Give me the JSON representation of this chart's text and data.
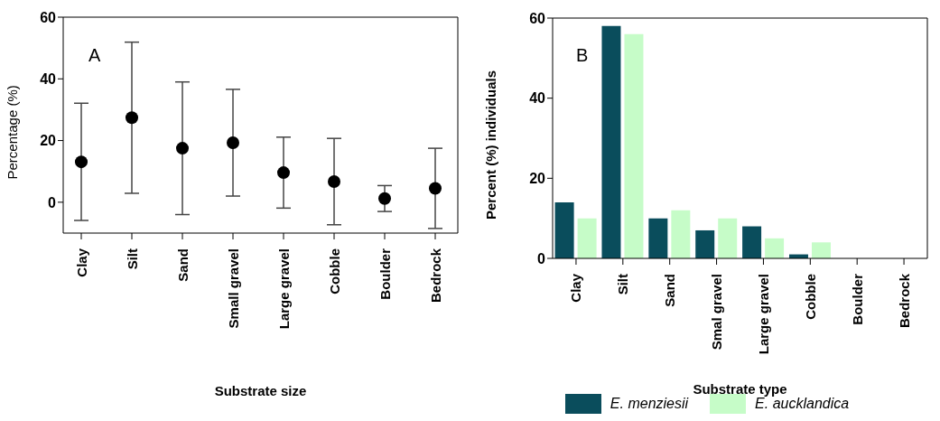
{
  "chart_data": [
    {
      "type": "scatter",
      "title": "A",
      "xlabel": "Substrate size",
      "ylabel": "Percentage (%)",
      "categories": [
        "Clay",
        "Silt",
        "Sand",
        "Small gravel",
        "Large gravel",
        "Cobble",
        "Boulder",
        "Bedrock"
      ],
      "values": [
        13.1,
        27.4,
        17.5,
        19.3,
        9.6,
        6.7,
        1.2,
        4.5
      ],
      "errors": [
        19,
        24.5,
        21.5,
        17.3,
        11.5,
        14,
        4.2,
        13
      ],
      "color": "#000000",
      "marker": "circle",
      "ylim": [
        -10,
        60
      ],
      "yticks": [
        0,
        20,
        40,
        60
      ]
    },
    {
      "type": "bar",
      "title": "B",
      "xlabel": "Substrate type",
      "ylabel": "Percent (%) individuals",
      "categories": [
        "Clay",
        "Silt",
        "Sand",
        "Smal gravel",
        "Large gravel",
        "Cobble",
        "Boulder",
        "Bedrock"
      ],
      "series": [
        {
          "name": "E. menziesii",
          "color": "#0a4d5c",
          "values": [
            14,
            58,
            10,
            7,
            8,
            1,
            0,
            0
          ]
        },
        {
          "name": "E. aucklandica",
          "color": "#c6fcc8",
          "values": [
            10,
            56,
            12,
            10,
            5,
            4,
            0,
            0
          ]
        }
      ],
      "ylim": [
        0,
        60
      ],
      "yticks": [
        0,
        20,
        40,
        60
      ],
      "legend": "bottom"
    }
  ]
}
